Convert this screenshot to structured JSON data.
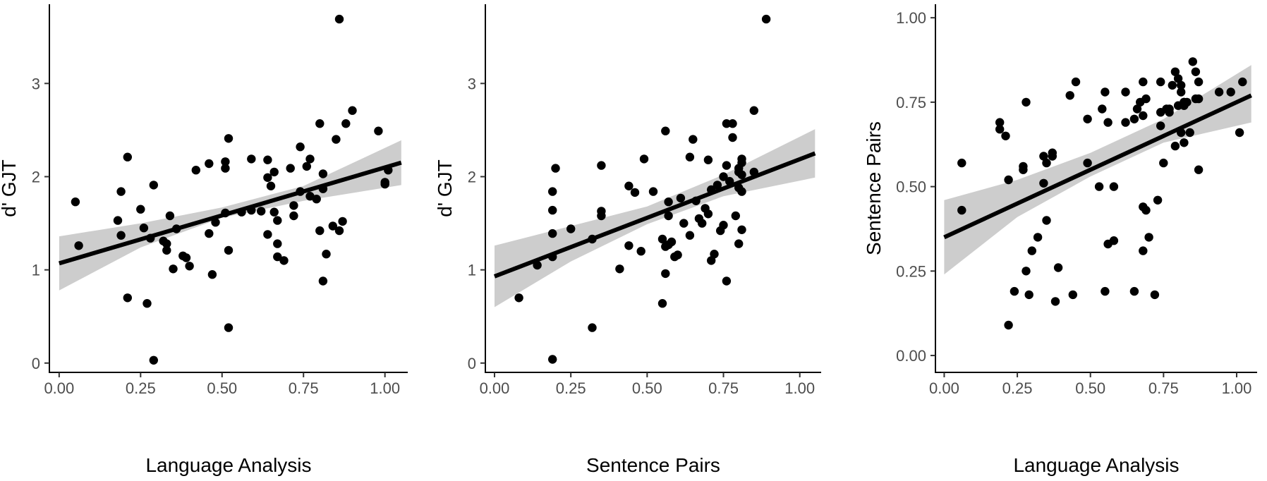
{
  "chart_data": [
    {
      "type": "scatter",
      "xlabel": "Language Analysis",
      "ylabel": "d' GJT",
      "xlim": [
        -0.03,
        1.07
      ],
      "ylim": [
        -0.1,
        3.85
      ],
      "xticks": [
        0.0,
        0.25,
        0.5,
        0.75,
        1.0
      ],
      "xtick_labels": [
        "0.00",
        "0.25",
        "0.50",
        "0.75",
        "1.00"
      ],
      "yticks": [
        0,
        1,
        2,
        3
      ],
      "ytick_labels": [
        "0",
        "1",
        "2",
        "3"
      ],
      "grid": false,
      "fit": {
        "x": [
          0.0,
          1.05
        ],
        "y": [
          1.07,
          2.15
        ]
      },
      "band_upper": [
        [
          0.0,
          1.36
        ],
        [
          0.25,
          1.5
        ],
        [
          0.5,
          1.67
        ],
        [
          0.75,
          1.9
        ],
        [
          1.05,
          2.39
        ]
      ],
      "band_lower": [
        [
          0.0,
          0.78
        ],
        [
          0.25,
          1.24
        ],
        [
          0.5,
          1.56
        ],
        [
          0.75,
          1.74
        ],
        [
          1.05,
          1.91
        ]
      ],
      "x": [
        0.05,
        0.06,
        0.18,
        0.19,
        0.19,
        0.21,
        0.21,
        0.25,
        0.26,
        0.27,
        0.28,
        0.29,
        0.29,
        0.32,
        0.33,
        0.33,
        0.34,
        0.35,
        0.36,
        0.38,
        0.39,
        0.4,
        0.42,
        0.46,
        0.46,
        0.47,
        0.48,
        0.51,
        0.51,
        0.51,
        0.52,
        0.52,
        0.52,
        0.56,
        0.59,
        0.59,
        0.62,
        0.64,
        0.64,
        0.64,
        0.65,
        0.66,
        0.66,
        0.67,
        0.67,
        0.67,
        0.69,
        0.71,
        0.72,
        0.72,
        0.74,
        0.74,
        0.76,
        0.77,
        0.77,
        0.79,
        0.8,
        0.8,
        0.81,
        0.81,
        0.81,
        0.82,
        0.84,
        0.85,
        0.86,
        0.86,
        0.87,
        0.88,
        0.9,
        0.98,
        1.0,
        1.0,
        1.01
      ],
      "y": [
        1.73,
        1.26,
        1.53,
        1.37,
        1.84,
        2.21,
        0.7,
        1.65,
        1.45,
        0.64,
        1.34,
        0.03,
        1.91,
        1.31,
        1.28,
        1.21,
        1.58,
        1.01,
        1.44,
        1.15,
        1.13,
        1.04,
        2.07,
        1.39,
        2.14,
        0.95,
        1.51,
        2.09,
        2.16,
        1.61,
        1.21,
        0.38,
        2.41,
        1.62,
        2.19,
        1.64,
        1.63,
        2.18,
        1.99,
        1.38,
        1.9,
        1.62,
        2.05,
        1.53,
        1.28,
        1.14,
        1.1,
        2.09,
        1.58,
        1.69,
        1.84,
        2.32,
        2.11,
        1.79,
        2.19,
        1.76,
        2.57,
        1.42,
        2.03,
        1.87,
        0.88,
        1.17,
        1.47,
        2.4,
        3.69,
        1.42,
        1.52,
        2.57,
        2.71,
        2.49,
        1.94,
        1.92,
        2.07
      ]
    },
    {
      "type": "scatter",
      "xlabel": "Sentence Pairs",
      "ylabel": "d' GJT",
      "xlim": [
        -0.03,
        1.07
      ],
      "ylim": [
        -0.1,
        3.85
      ],
      "xticks": [
        0.0,
        0.25,
        0.5,
        0.75,
        1.0
      ],
      "xtick_labels": [
        "0.00",
        "0.25",
        "0.50",
        "0.75",
        "1.00"
      ],
      "yticks": [
        0,
        1,
        2,
        3
      ],
      "ytick_labels": [
        "0",
        "1",
        "2",
        "3"
      ],
      "grid": false,
      "fit": {
        "x": [
          0.0,
          1.05
        ],
        "y": [
          0.93,
          2.25
        ]
      },
      "band_upper": [
        [
          0.0,
          1.26
        ],
        [
          0.25,
          1.47
        ],
        [
          0.5,
          1.68
        ],
        [
          0.75,
          2.02
        ],
        [
          1.05,
          2.51
        ]
      ],
      "band_lower": [
        [
          0.0,
          0.6
        ],
        [
          0.25,
          1.09
        ],
        [
          0.5,
          1.49
        ],
        [
          0.75,
          1.79
        ],
        [
          1.05,
          1.99
        ]
      ],
      "x": [
        0.08,
        0.14,
        0.19,
        0.19,
        0.19,
        0.19,
        0.19,
        0.2,
        0.25,
        0.32,
        0.32,
        0.35,
        0.35,
        0.35,
        0.41,
        0.44,
        0.44,
        0.46,
        0.48,
        0.49,
        0.52,
        0.55,
        0.55,
        0.56,
        0.56,
        0.56,
        0.57,
        0.57,
        0.57,
        0.58,
        0.59,
        0.6,
        0.61,
        0.62,
        0.64,
        0.64,
        0.65,
        0.66,
        0.67,
        0.68,
        0.69,
        0.7,
        0.7,
        0.71,
        0.71,
        0.72,
        0.73,
        0.74,
        0.75,
        0.75,
        0.76,
        0.76,
        0.76,
        0.77,
        0.78,
        0.78,
        0.79,
        0.8,
        0.8,
        0.8,
        0.8,
        0.81,
        0.81,
        0.81,
        0.81,
        0.81,
        0.85,
        0.85,
        0.89
      ],
      "y": [
        0.7,
        1.05,
        0.04,
        1.14,
        1.39,
        1.64,
        1.84,
        2.09,
        1.44,
        1.33,
        0.38,
        1.58,
        1.63,
        2.12,
        1.01,
        1.26,
        1.9,
        1.83,
        1.2,
        2.19,
        1.84,
        0.64,
        1.33,
        0.96,
        1.25,
        2.49,
        1.73,
        1.58,
        1.27,
        1.3,
        1.14,
        1.16,
        1.77,
        1.5,
        1.37,
        2.21,
        2.4,
        1.74,
        1.55,
        1.5,
        1.66,
        2.18,
        1.6,
        1.1,
        1.86,
        1.17,
        1.91,
        1.42,
        1.48,
        2.0,
        0.88,
        2.12,
        2.57,
        1.95,
        2.42,
        2.57,
        1.58,
        2.05,
        2.09,
        1.88,
        1.28,
        2.15,
        1.43,
        1.84,
        2.02,
        2.19,
        2.05,
        2.71,
        3.69
      ]
    },
    {
      "type": "scatter",
      "xlabel": "Language Analysis",
      "ylabel": "Sentence Pairs",
      "xlim": [
        -0.03,
        1.07
      ],
      "ylim": [
        -0.05,
        1.04
      ],
      "xticks": [
        0.0,
        0.25,
        0.5,
        0.75,
        1.0
      ],
      "xtick_labels": [
        "0.00",
        "0.25",
        "0.50",
        "0.75",
        "1.00"
      ],
      "yticks": [
        0.0,
        0.25,
        0.5,
        0.75,
        1.0
      ],
      "ytick_labels": [
        "0.00",
        "0.25",
        "0.50",
        "0.75",
        "1.00"
      ],
      "grid": false,
      "fit": {
        "x": [
          0.0,
          1.05
        ],
        "y": [
          0.35,
          0.77
        ]
      },
      "band_upper": [
        [
          0.0,
          0.46
        ],
        [
          0.25,
          0.52
        ],
        [
          0.5,
          0.6
        ],
        [
          0.75,
          0.7
        ],
        [
          1.05,
          0.86
        ]
      ],
      "band_lower": [
        [
          0.0,
          0.24
        ],
        [
          0.25,
          0.41
        ],
        [
          0.5,
          0.53
        ],
        [
          0.75,
          0.63
        ],
        [
          1.05,
          0.69
        ]
      ],
      "x": [
        0.06,
        0.06,
        0.19,
        0.19,
        0.21,
        0.22,
        0.22,
        0.24,
        0.27,
        0.27,
        0.28,
        0.28,
        0.29,
        0.3,
        0.32,
        0.34,
        0.34,
        0.35,
        0.35,
        0.37,
        0.37,
        0.38,
        0.39,
        0.43,
        0.44,
        0.45,
        0.49,
        0.49,
        0.53,
        0.54,
        0.55,
        0.55,
        0.56,
        0.56,
        0.58,
        0.58,
        0.62,
        0.62,
        0.65,
        0.65,
        0.66,
        0.67,
        0.68,
        0.68,
        0.68,
        0.68,
        0.69,
        0.69,
        0.7,
        0.72,
        0.73,
        0.74,
        0.74,
        0.74,
        0.75,
        0.76,
        0.77,
        0.77,
        0.78,
        0.79,
        0.79,
        0.8,
        0.8,
        0.81,
        0.81,
        0.81,
        0.82,
        0.82,
        0.82,
        0.82,
        0.83,
        0.84,
        0.85,
        0.86,
        0.86,
        0.87,
        0.87,
        0.87,
        0.94,
        0.98,
        1.01,
        1.02
      ],
      "y": [
        0.43,
        0.57,
        0.69,
        0.67,
        0.65,
        0.09,
        0.52,
        0.19,
        0.56,
        0.55,
        0.75,
        0.25,
        0.18,
        0.31,
        0.35,
        0.51,
        0.59,
        0.4,
        0.57,
        0.59,
        0.6,
        0.16,
        0.26,
        0.77,
        0.18,
        0.81,
        0.57,
        0.7,
        0.5,
        0.73,
        0.78,
        0.19,
        0.69,
        0.33,
        0.5,
        0.34,
        0.69,
        0.78,
        0.19,
        0.7,
        0.73,
        0.75,
        0.71,
        0.81,
        0.44,
        0.31,
        0.43,
        0.76,
        0.35,
        0.18,
        0.46,
        0.68,
        0.81,
        0.72,
        0.57,
        0.73,
        0.72,
        0.73,
        0.8,
        0.62,
        0.84,
        0.74,
        0.82,
        0.66,
        0.8,
        0.78,
        0.63,
        0.75,
        0.74,
        0.75,
        0.75,
        0.66,
        0.87,
        0.76,
        0.84,
        0.76,
        0.55,
        0.81,
        0.78,
        0.78,
        0.66,
        0.81
      ]
    }
  ]
}
